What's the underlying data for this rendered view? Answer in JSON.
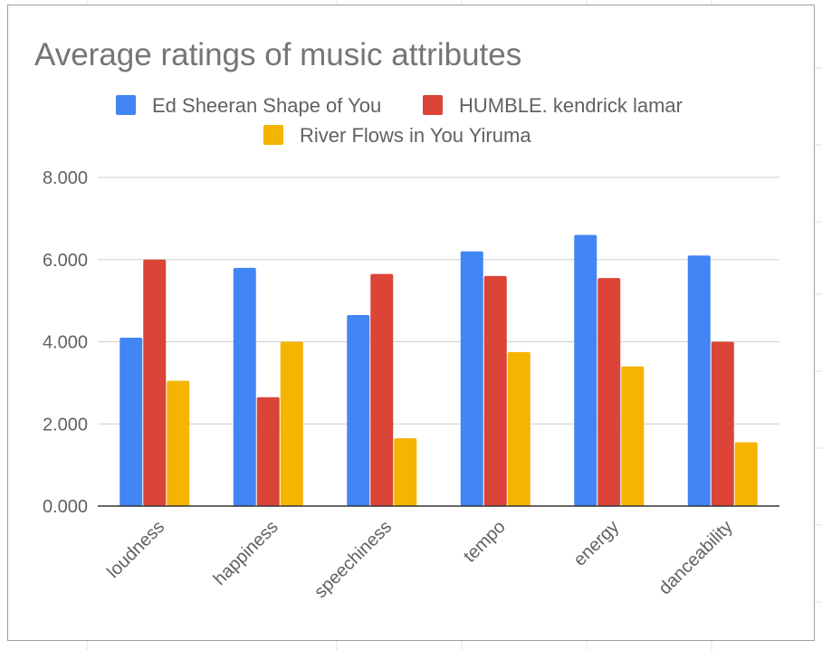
{
  "chart_data": {
    "type": "bar",
    "title": "Average ratings of music attributes",
    "categories": [
      "loudness",
      "happiness",
      "speechiness",
      "tempo",
      "energy",
      "danceability"
    ],
    "series": [
      {
        "name": "Ed Sheeran Shape of You",
        "color": "#4285f4",
        "values": [
          4.1,
          5.8,
          4.65,
          6.2,
          6.6,
          6.1
        ]
      },
      {
        "name": "HUMBLE. kendrick lamar",
        "color": "#db4437",
        "values": [
          6.0,
          2.65,
          5.65,
          5.6,
          5.55,
          4.0
        ]
      },
      {
        "name": "River Flows in You Yiruma",
        "color": "#f4b400",
        "values": [
          3.05,
          4.0,
          1.65,
          3.75,
          3.4,
          1.55
        ]
      }
    ],
    "y_ticks": [
      "0.000",
      "2.000",
      "4.000",
      "6.000",
      "8.000"
    ],
    "ylim": [
      0,
      8
    ],
    "grid": true,
    "legend": "top-center"
  }
}
